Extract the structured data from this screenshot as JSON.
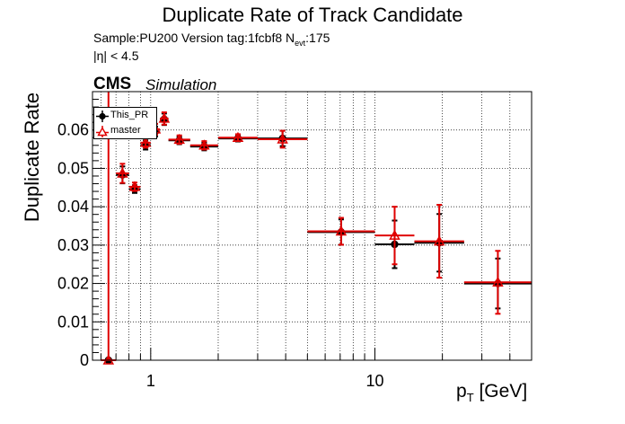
{
  "header": {
    "title": "Duplicate Rate of Track Candidate",
    "info_prefix": "Sample:PU200   Version tag:1fcbf8  N",
    "info_sub": "evt",
    "info_suffix": ":175",
    "eta_cut": "|η| < 4.5",
    "cms": "CMS",
    "simulation": "Simulation"
  },
  "colors": {
    "this_pr": "#000000",
    "master": "#e00000",
    "grid": "#000000"
  },
  "chart_data": {
    "type": "scatter",
    "title": "Duplicate Rate of Track Candidate",
    "xlabel_main": "p",
    "xlabel_sub": "T",
    "xlabel_unit": " [GeV]",
    "ylabel": "Duplicate Rate",
    "xscale": "log",
    "xlim": [
      0.55,
      50
    ],
    "ylim": [
      0,
      0.07
    ],
    "grid": true,
    "legend_position": "top-left",
    "x_ticks": [
      {
        "value": 1,
        "label": "1"
      },
      {
        "value": 10,
        "label": "10"
      }
    ],
    "y_ticks": [
      {
        "value": 0,
        "label": "0"
      },
      {
        "value": 0.01,
        "label": "0.01"
      },
      {
        "value": 0.02,
        "label": "0.02"
      },
      {
        "value": 0.03,
        "label": "0.03"
      },
      {
        "value": 0.04,
        "label": "0.04"
      },
      {
        "value": 0.05,
        "label": "0.05"
      },
      {
        "value": 0.06,
        "label": "0.06"
      }
    ],
    "bins": [
      {
        "lo": 0.6,
        "hi": 0.7
      },
      {
        "lo": 0.7,
        "hi": 0.8
      },
      {
        "lo": 0.8,
        "hi": 0.9
      },
      {
        "lo": 0.9,
        "hi": 1.0
      },
      {
        "lo": 1.0,
        "hi": 1.1
      },
      {
        "lo": 1.1,
        "hi": 1.2
      },
      {
        "lo": 1.2,
        "hi": 1.5
      },
      {
        "lo": 1.5,
        "hi": 2.0
      },
      {
        "lo": 2.0,
        "hi": 3.0
      },
      {
        "lo": 3.0,
        "hi": 5.0
      },
      {
        "lo": 5.0,
        "hi": 10.0
      },
      {
        "lo": 10.0,
        "hi": 15.0
      },
      {
        "lo": 15.0,
        "hi": 25.0
      },
      {
        "lo": 25.0,
        "hi": 50.0
      }
    ],
    "series": [
      {
        "name": "This_PR",
        "marker": "circle",
        "color": "#000000",
        "values": [
          0.0,
          0.0483,
          0.0446,
          0.0561,
          0.0596,
          0.0628,
          0.0573,
          0.0557,
          0.0578,
          0.0578,
          0.0334,
          0.0302,
          0.0306,
          0.02
        ],
        "errors": [
          0.0,
          0.0022,
          0.001,
          0.0012,
          0.0013,
          0.0015,
          0.001,
          0.001,
          0.0008,
          0.002,
          0.0033,
          0.0062,
          0.0075,
          0.0065
        ]
      },
      {
        "name": "master",
        "marker": "open-triangle",
        "color": "#e00000",
        "values": [
          0.0,
          0.0487,
          0.0452,
          0.0567,
          0.0602,
          0.063,
          0.0575,
          0.056,
          0.058,
          0.0576,
          0.0336,
          0.0325,
          0.031,
          0.0203
        ],
        "errors": [
          0.07,
          0.0025,
          0.0011,
          0.0013,
          0.0014,
          0.0016,
          0.0011,
          0.0011,
          0.0009,
          0.0022,
          0.0035,
          0.0075,
          0.0095,
          0.0082
        ]
      }
    ]
  }
}
